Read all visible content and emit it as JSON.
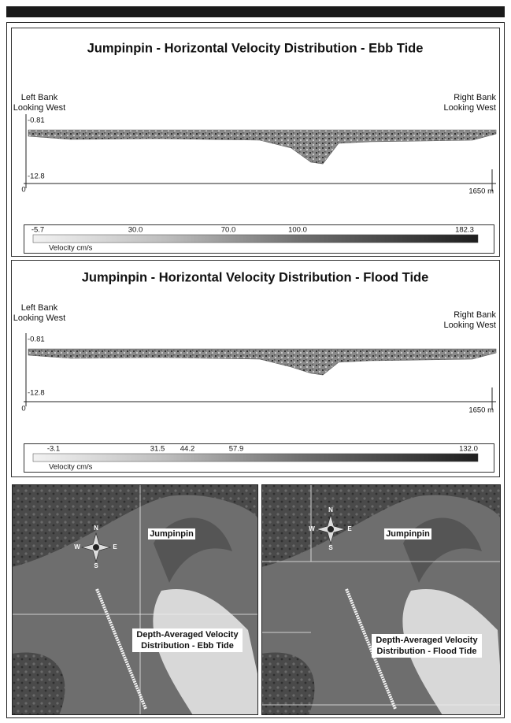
{
  "panels": [
    {
      "title": "Jumpinpin - Horizontal Velocity Distribution - Ebb Tide",
      "left_bank": [
        "Left Bank",
        "Looking West"
      ],
      "right_bank": [
        "Right Bank",
        "Looking West"
      ],
      "depth_top": "-0.81",
      "depth_bottom": "-12.8",
      "x_start": "0",
      "x_end": "1650 m",
      "colorbar_ticks": [
        "-5.7",
        "30.0",
        "70.0",
        "100.0",
        "182.3"
      ],
      "colorbar_label": "Velocity cm/s"
    },
    {
      "title": "Jumpinpin - Horizontal Velocity Distribution -  Flood Tide",
      "left_bank": [
        "Left Bank",
        "Looking West"
      ],
      "right_bank": [
        "Right Bank",
        "Looking West"
      ],
      "depth_top": "-0.81",
      "depth_bottom": "-12.8",
      "x_start": "0",
      "x_end": "1650 m",
      "colorbar_ticks": [
        "-3.1",
        "31.5",
        "44.2",
        "57.9",
        "132.0"
      ],
      "colorbar_label": "Velocity cm/s"
    }
  ],
  "maps": [
    {
      "place": "Jumpinpin",
      "caption": [
        "Depth-Averaged Velocity",
        "Distribution - Ebb Tide"
      ],
      "compass": [
        "N",
        "E",
        "S",
        "W"
      ]
    },
    {
      "place": "Jumpinpin",
      "caption": [
        "Depth-Averaged Velocity",
        "Distribution - Flood Tide"
      ],
      "compass": [
        "N",
        "E",
        "S",
        "W"
      ]
    }
  ]
}
